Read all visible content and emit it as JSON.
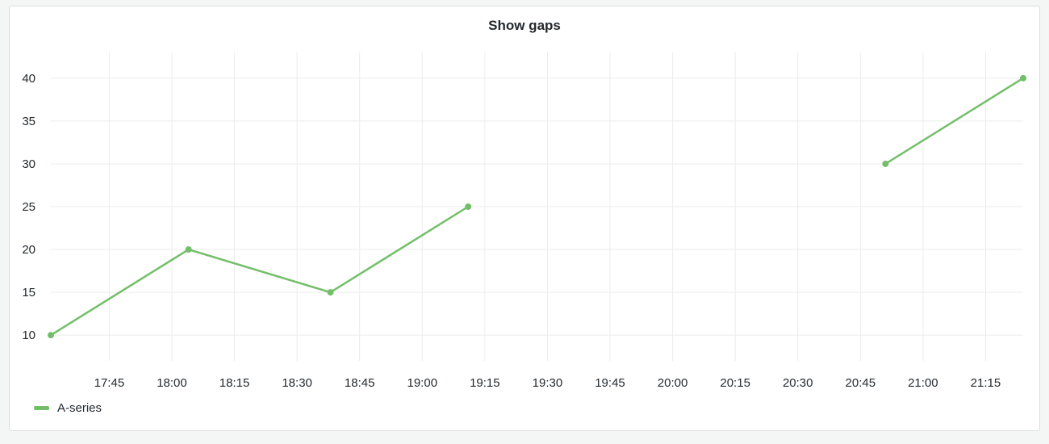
{
  "panel": {
    "title": "Show gaps"
  },
  "chart_data": {
    "type": "line",
    "title": "Show gaps",
    "xlabel": "",
    "ylabel": "",
    "x_ticks": [
      "17:45",
      "18:00",
      "18:15",
      "18:30",
      "18:45",
      "19:00",
      "19:15",
      "19:30",
      "19:45",
      "20:00",
      "20:15",
      "20:30",
      "20:45",
      "21:00",
      "21:15"
    ],
    "y_ticks": [
      10,
      15,
      20,
      25,
      30,
      35,
      40
    ],
    "xlim": [
      "17:31",
      "21:24"
    ],
    "ylim": [
      7,
      43
    ],
    "grid": true,
    "legend_position": "bottom-left",
    "series": [
      {
        "name": "A-series",
        "color": "#73bf69",
        "points": [
          {
            "x": "17:31",
            "y": 10
          },
          {
            "x": "18:04",
            "y": 20
          },
          {
            "x": "18:38",
            "y": 15
          },
          {
            "x": "19:11",
            "y": 25
          },
          {
            "x": "19:44",
            "y": null
          },
          {
            "x": "20:17",
            "y": null
          },
          {
            "x": "20:51",
            "y": 30
          },
          {
            "x": "21:24",
            "y": 40
          }
        ]
      }
    ]
  }
}
